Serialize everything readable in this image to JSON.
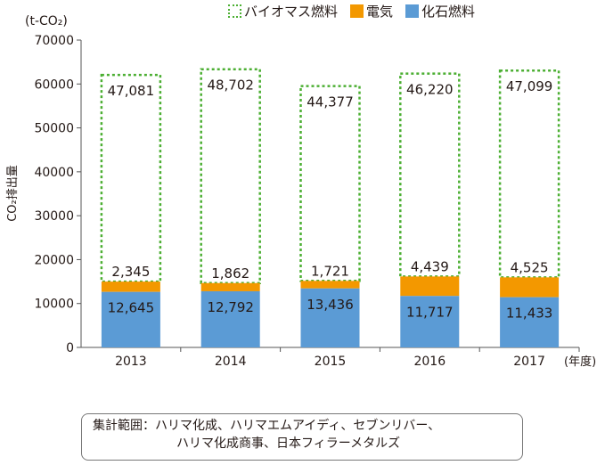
{
  "legend": {
    "biomass": "バイオマス燃料",
    "electricity": "電気",
    "fossil": "化石燃料"
  },
  "colors": {
    "biomass": "#4caf33",
    "electricity": "#f39800",
    "fossil": "#5b9bd5"
  },
  "note": {
    "line1": "集計範囲：ハリマ化成、ハリマエムアイディ、セブンリバー、",
    "line2": "ハリマ化成商事、日本フィラーメタルズ"
  },
  "chart_data": {
    "type": "bar",
    "stacked": true,
    "unit_label": "(t-CO₂)",
    "ylabel": "CO₂排出量",
    "xlabel": "(年度)",
    "categories": [
      "2013",
      "2014",
      "2015",
      "2016",
      "2017"
    ],
    "ylim": [
      0,
      70000
    ],
    "yticks": [
      0,
      10000,
      20000,
      30000,
      40000,
      50000,
      60000,
      70000
    ],
    "series": [
      {
        "name": "化石燃料",
        "key": "fossil",
        "values": [
          12645,
          12792,
          13436,
          11717,
          11433
        ],
        "labels": [
          "12,645",
          "12,792",
          "13,436",
          "11,717",
          "11,433"
        ]
      },
      {
        "name": "電気",
        "key": "electricity",
        "values": [
          2345,
          1862,
          1721,
          4439,
          4525
        ],
        "labels": [
          "2,345",
          "1,862",
          "1,721",
          "4,439",
          "4,525"
        ]
      },
      {
        "name": "バイオマス燃料",
        "key": "biomass",
        "values": [
          47081,
          48702,
          44377,
          46220,
          47099
        ],
        "labels": [
          "47,081",
          "48,702",
          "44,377",
          "46,220",
          "47,099"
        ]
      }
    ]
  }
}
